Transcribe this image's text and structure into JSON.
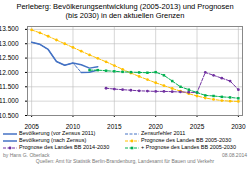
{
  "chart_data": {
    "type": "line",
    "title": "Perleberg:  Bevölkerungsentwicklung (2005-2013) und Prognosen\n(bis 2030) in den aktuellen Grenzen",
    "x": [
      2005,
      2006,
      2007,
      2008,
      2009,
      2010,
      2011,
      2012,
      2013,
      2014,
      2015,
      2016,
      2017,
      2018,
      2019,
      2020,
      2021,
      2022,
      2023,
      2024,
      2025,
      2026,
      2027,
      2028,
      2029,
      2030
    ],
    "series": [
      {
        "name": "Bevölkerung (vor Zensus 2011)",
        "color": "#4472c4",
        "line_style": "solid",
        "values": [
          13050,
          12980,
          12800,
          12380,
          12250,
          12330,
          12270,
          12150,
          12200,
          null,
          null,
          null,
          null,
          null,
          null,
          null,
          null,
          null,
          null,
          null,
          null,
          null,
          null,
          null,
          null,
          null
        ]
      },
      {
        "name": "Zensurfehler 2011",
        "color": "#4472c4",
        "line_style": "dashed",
        "values": [
          13050,
          12980,
          12800,
          12380,
          12250,
          12330,
          12000,
          null,
          null,
          null,
          null,
          null,
          null,
          null,
          null,
          null,
          null,
          null,
          null,
          null,
          null,
          null,
          null,
          null,
          null,
          null
        ]
      },
      {
        "name": "Bevölkerung (nach Zensus)",
        "color": "#4472c4",
        "line_style": "solid",
        "values": [
          null,
          null,
          null,
          null,
          null,
          null,
          12000,
          12010,
          12080,
          null,
          null,
          null,
          null,
          null,
          null,
          null,
          null,
          null,
          null,
          null,
          null,
          null,
          null,
          null,
          null,
          null
        ]
      },
      {
        "name": "Prognose des Landes BB 2005-2030",
        "color": "#ffc000",
        "line_style": "dashed",
        "marker": "circle",
        "values": [
          13480,
          13380,
          13260,
          13130,
          13000,
          12870,
          12740,
          12610,
          12490,
          12370,
          12240,
          12110,
          11980,
          11860,
          11750,
          11640,
          11540,
          11440,
          11350,
          11260,
          11180,
          11110,
          11060,
          11020,
          11000,
          10990
        ]
      },
      {
        "name": "Prognose des Landes BB 2014-2030",
        "color": "#7030a0",
        "line_style": "dashed",
        "marker": "circle",
        "values": [
          null,
          null,
          null,
          null,
          null,
          null,
          null,
          null,
          null,
          11450,
          11420,
          11400,
          11380,
          11360,
          11350,
          11340,
          11340,
          11330,
          11320,
          11310,
          11300,
          12000,
          11900,
          11800,
          11700,
          11400
        ]
      },
      {
        "name": "+ Prognose des Landes BB 2005-2030",
        "color": "#00b050",
        "line_style": "dashed",
        "marker": "square",
        "values": [
          null,
          null,
          null,
          null,
          null,
          null,
          null,
          12080,
          12080,
          12060,
          12040,
          12020,
          12010,
          12000,
          11990,
          12010,
          11900,
          11700,
          11500,
          11400,
          11300,
          11200,
          11180,
          11150,
          11130,
          11100
        ]
      }
    ],
    "xlim": [
      2004.5,
      2030.5
    ],
    "xticks": [
      2005,
      2010,
      2015,
      2020,
      2025,
      2030
    ],
    "ylim": [
      10500,
      13600
    ],
    "yticks": [
      {
        "value": 10500,
        "label": "10.500"
      },
      {
        "value": 11000,
        "label": "11.000"
      },
      {
        "value": 11500,
        "label": "11.500"
      },
      {
        "value": 12000,
        "label": "12.000"
      },
      {
        "value": 12500,
        "label": "12.500"
      },
      {
        "value": 13000,
        "label": "13.000"
      },
      {
        "value": 13500,
        "label": "13.500"
      }
    ],
    "grid": true,
    "legend": "bottom",
    "annotations": [
      "by Hans G. Oberlack",
      "Quellen: Amt für Statistik Berlin-Brandenburg, Landesamt für Bauen und Verkehr",
      "08.08.2014"
    ]
  }
}
